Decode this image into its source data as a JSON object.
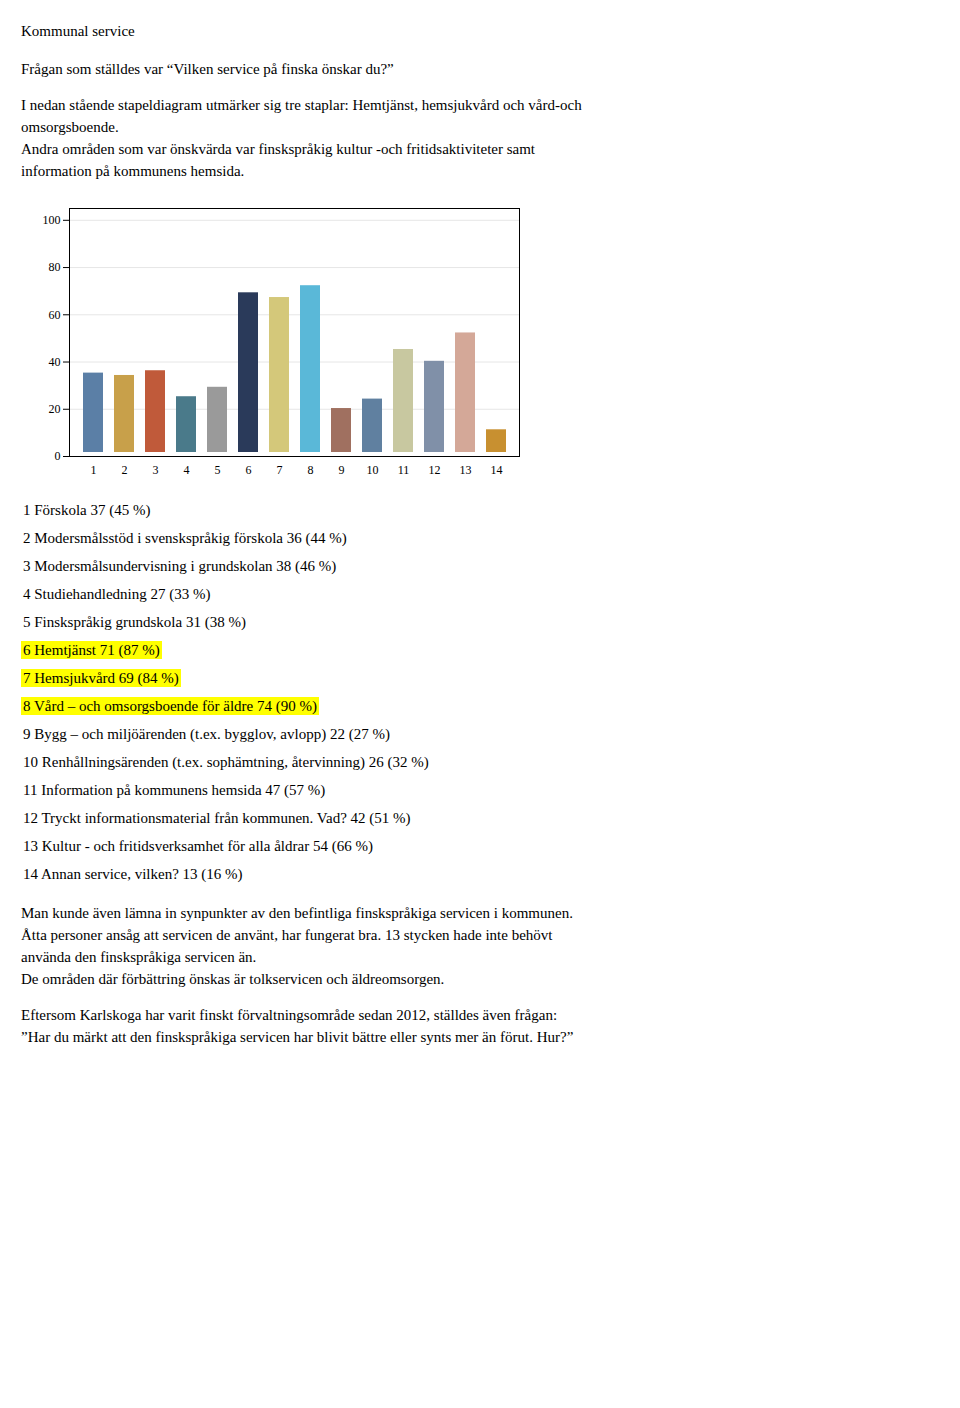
{
  "chart_data": {
    "type": "bar",
    "title": "Kommunal service",
    "subtitle": [
      [
        "Frågan som ställdes var “Vilken service på finska önskar du?”"
      ],
      [
        "I nedan stående stapeldiagram utmärker sig tre staplar: Hemtjänst, hemsjukvård och vård-och",
        "omsorgsboende.",
        "Andra områden som var önskvärda var finskspråkig kultur -och fritidsaktiviteter samt",
        "information på kommunens hemsida."
      ]
    ],
    "categories": [
      "1",
      "2",
      "3",
      "4",
      "5",
      "6",
      "7",
      "8",
      "9",
      "10",
      "11",
      "12",
      "13",
      "14"
    ],
    "values": [
      37,
      36,
      38,
      27,
      31,
      71,
      69,
      74,
      22,
      26,
      47,
      42,
      54,
      13
    ],
    "colors": [
      "#5b7fa6",
      "#c8a04a",
      "#c05a3a",
      "#4a7a8a",
      "#9a9a9a",
      "#2a3a5a",
      "#d4c87a",
      "#5ab8d8",
      "#a07060",
      "#6080a0",
      "#c8c8a0",
      "#8090a8",
      "#d4a898",
      "#c89030"
    ],
    "ylim": [
      0,
      105
    ],
    "yticks": [
      0,
      20,
      40,
      60,
      80,
      100
    ],
    "grid": true,
    "annotations": [
      {
        "text": "1 Förskola 37 (45 %)"
      },
      {
        "text": "2 Modersmålsstöd i svenskspråkig förskola 36 (44 %)"
      },
      {
        "text": "3 Modersmålsundervisning i grundskolan 38 (46 %)"
      },
      {
        "text": "4 Studiehandledning 27 (33 %)"
      },
      {
        "text": "5 Finskspråkig grundskola 31 (38 %)"
      },
      {
        "text": "6 Hemtjänst 71 (87 %)",
        "color": "#ffff00"
      },
      {
        "text": "7 Hemsjukvård 69 (84 %)",
        "color": "#ffff00"
      },
      {
        "text": "8 Vård – och omsorgsboende för äldre 74 (90 %)",
        "color": "#ffff00"
      },
      {
        "text": "9 Bygg – och miljöärenden (t.ex. bygglov, avlopp) 22 (27 %)"
      },
      {
        "text": "10 Renhållningsärenden (t.ex. sophämtning, återvinning) 26 (32 %)"
      },
      {
        "text": "11 Information på kommunens hemsida 47 (57 %)"
      },
      {
        "text": "12 Tryckt informationsmaterial från kommunen. Vad? 42 (51 %)"
      },
      {
        "text": "13 Kultur - och fritidsverksamhet för alla åldrar 54 (66 %)"
      },
      {
        "text": "14 Annan service, vilken? 13 (16 %)"
      }
    ],
    "caption": [
      [
        "Man kunde även lämna in synpunkter av den befintliga finskspråkiga servicen i kommunen.",
        "Åtta personer ansåg att servicen de använt, har fungerat bra. 13 stycken hade inte behövt",
        "använda den finskspråkiga servicen än.",
        "De områden där förbättring önskas är tolkservicen och äldreomsorgen."
      ],
      [
        "Eftersom Karlskoga har varit finskt förvaltningsområde sedan 2012, ställdes även frågan:",
        "”Har du märkt att den finskspråkiga servicen har blivit bättre eller synts mer än förut. Hur?”"
      ]
    ]
  }
}
